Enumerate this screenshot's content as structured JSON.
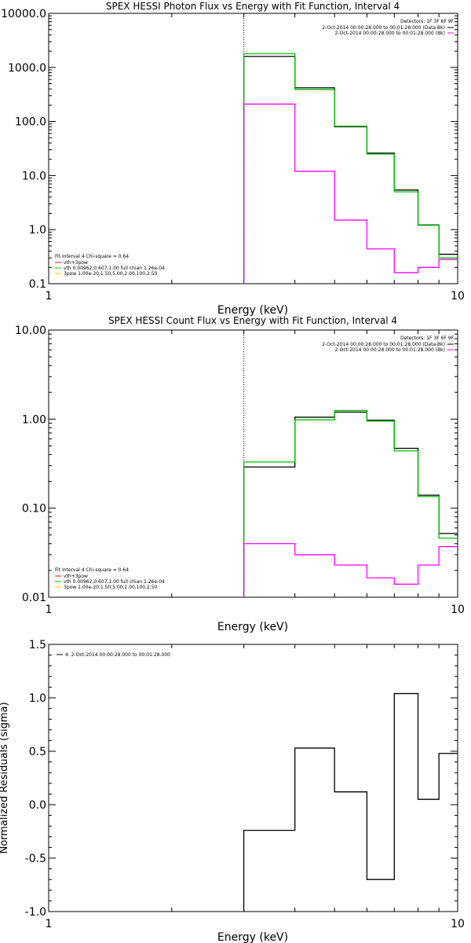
{
  "chart_data": [
    {
      "type": "line",
      "step": true,
      "title": "SPEX HESSI Photon Flux vs Energy with Fit Function, Interval 4",
      "xlabel": "Energy (keV)",
      "ylabel": "",
      "xscale": "log",
      "yscale": "log",
      "xlim": [
        1,
        10
      ],
      "ylim": [
        0.1,
        10000
      ],
      "x_tick_labels": [
        "1",
        "10"
      ],
      "y_tick_values": [
        0.1,
        1,
        10,
        100,
        1000,
        10000
      ],
      "y_tick_labels": [
        "0.1",
        "1.0",
        "10.0",
        "100.0",
        "1000.0",
        "10000.0"
      ],
      "vertical_marker_x": 3.0,
      "bin_edges": [
        3.0,
        4.0,
        5.0,
        6.0,
        7.0,
        8.0,
        9.0,
        10.0
      ],
      "series": [
        {
          "color": "#000000",
          "values": [
            1600,
            420,
            80,
            26,
            5.4,
            1.22,
            0.35
          ]
        },
        {
          "color": "#00c000",
          "values": [
            1800,
            390,
            82,
            25,
            5.0,
            1.2,
            0.3
          ]
        },
        {
          "color": "#ff00ff",
          "values": [
            210,
            12,
            1.5,
            0.44,
            0.16,
            0.2,
            0.28
          ]
        }
      ],
      "legend_top_right": {
        "header": "Detectors: 1F 3F 6F 9F",
        "lines": [
          {
            "text": "2-Oct-2014 00:00:28.000 to 00:01:28.000 (Data-Bk)",
            "color": "#000000"
          },
          {
            "text": "2-Oct-2014 00:00:28.000 to 00:01:28.000 (Bk)",
            "color": "#ff00ff"
          }
        ]
      },
      "legend_bottom_left": {
        "header": "Fit Interval 4   Chi-square = 0.64",
        "lines": [
          {
            "text": "vth+3pow",
            "color": "#ff0000"
          },
          {
            "text": "vth 0.00962,0.607,1.00   full chian 1.26e-04",
            "color": "#00c000"
          },
          {
            "text": "3pow 1.00e-20,1.50,5.00,2.00,100,2.50",
            "color": "#ffc000"
          }
        ]
      }
    },
    {
      "type": "line",
      "step": true,
      "title": "SPEX HESSI Count Flux vs Energy with Fit Function, Interval 4",
      "xlabel": "Energy (keV)",
      "ylabel": "",
      "xscale": "log",
      "yscale": "log",
      "xlim": [
        1,
        10
      ],
      "ylim": [
        0.01,
        10
      ],
      "x_tick_labels": [
        "1",
        "10"
      ],
      "y_tick_values": [
        0.01,
        0.1,
        1,
        10
      ],
      "y_tick_labels": [
        "0.01",
        "0.10",
        "1.00",
        "10.00"
      ],
      "vertical_marker_x": 3.0,
      "bin_edges": [
        3.0,
        4.0,
        5.0,
        6.0,
        7.0,
        8.0,
        9.0,
        10.0
      ],
      "series": [
        {
          "color": "#000000",
          "values": [
            0.29,
            1.05,
            1.2,
            0.97,
            0.47,
            0.14,
            0.052
          ]
        },
        {
          "color": "#00c000",
          "values": [
            0.33,
            0.98,
            1.25,
            0.95,
            0.44,
            0.135,
            0.046
          ]
        },
        {
          "color": "#ff00ff",
          "values": [
            0.04,
            0.03,
            0.023,
            0.0165,
            0.014,
            0.023,
            0.037
          ]
        }
      ],
      "legend_top_right": {
        "header": "Detectors: 1F 3F 6F 9F",
        "lines": [
          {
            "text": "2-Oct-2014 00:00:28.000 to 00:01:28.000 (Data-Bk)",
            "color": "#000000"
          },
          {
            "text": "2-Oct-2014 00:00:28.000 to 00:01:28.000 (Bk)",
            "color": "#ff00ff"
          }
        ]
      },
      "legend_bottom_left": {
        "header": "Fit Interval 4   Chi-square = 0.64",
        "lines": [
          {
            "text": "vth+3pow",
            "color": "#ff0000"
          },
          {
            "text": "vth 0.00962,0.607,1.00   full chian 1.26e-04",
            "color": "#00c000"
          },
          {
            "text": "3pow 1.00e-20,1.50,5.00,2.00,100,2.50",
            "color": "#ffc000"
          }
        ]
      }
    },
    {
      "type": "line",
      "step": true,
      "title": "",
      "xlabel": "Energy (keV)",
      "ylabel": "Normalized Residuals (sigma)",
      "xscale": "log",
      "yscale": "linear",
      "xlim": [
        1,
        10
      ],
      "ylim": [
        -1.0,
        1.5
      ],
      "x_tick_labels": [
        "1",
        "10"
      ],
      "y_tick_values": [
        -1.0,
        -0.5,
        0.0,
        0.5,
        1.0,
        1.5
      ],
      "y_tick_labels": [
        "-1.0",
        "-0.5",
        "0.0",
        "0.5",
        "1.0",
        "1.5"
      ],
      "bin_edges": [
        3.0,
        4.0,
        5.0,
        6.0,
        7.0,
        8.0,
        9.0,
        10.0
      ],
      "series": [
        {
          "color": "#000000",
          "values": [
            -0.24,
            0.53,
            0.12,
            -0.7,
            1.04,
            0.05,
            0.48
          ]
        }
      ],
      "legend_top_left": {
        "lines": [
          {
            "text": "4.  2-Oct-2014 00:00:28.000 to 00:01:28.000",
            "color": "#000000"
          }
        ]
      }
    }
  ]
}
